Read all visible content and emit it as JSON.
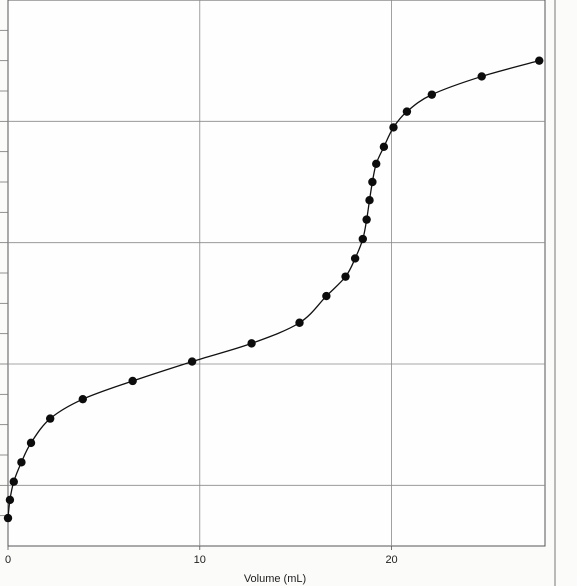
{
  "chart_data": {
    "type": "scatter",
    "title": "",
    "xlabel": "Volume (mL)",
    "ylabel": "",
    "xlim": [
      0,
      28
    ],
    "ylim": [
      0,
      4.5
    ],
    "grid": true,
    "x_ticks": [
      0,
      10,
      20
    ],
    "x_tick_labels": [
      "0",
      "10",
      "20"
    ],
    "y_gridlines": [
      0.5,
      1.5,
      2.5,
      3.5
    ],
    "line": true,
    "marker": "filled-circle",
    "series": [
      {
        "values_x": [
          0,
          0.1,
          0.3,
          0.7,
          1.2,
          2.2,
          3.9,
          6.5,
          9.6,
          12.7,
          15.2,
          16.6,
          17.6,
          18.1,
          18.5,
          18.7,
          18.85,
          19.0,
          19.2,
          19.6,
          20.1,
          20.8,
          22.1,
          24.7,
          27.7
        ],
        "values_y": [
          0.23,
          0.38,
          0.53,
          0.69,
          0.85,
          1.05,
          1.21,
          1.36,
          1.52,
          1.67,
          1.84,
          2.06,
          2.22,
          2.37,
          2.53,
          2.69,
          2.85,
          3.0,
          3.15,
          3.29,
          3.45,
          3.58,
          3.72,
          3.87,
          4.0
        ]
      }
    ]
  }
}
